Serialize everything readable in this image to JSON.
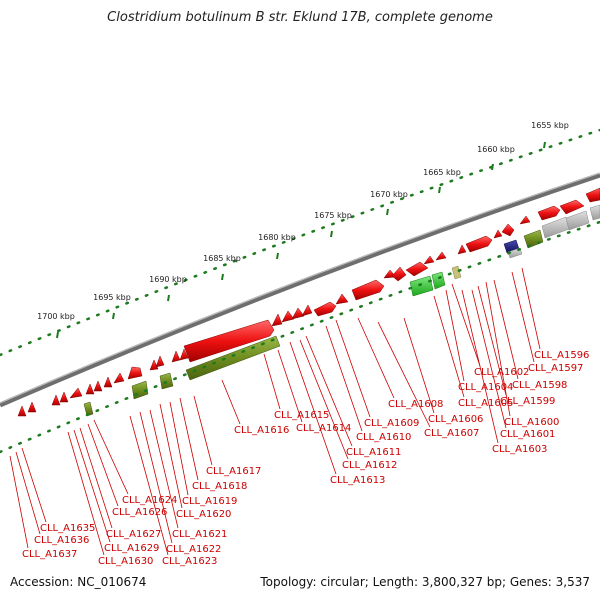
{
  "title": "Clostridium botulinum B str. Eklund 17B, complete genome",
  "footer": {
    "accession": "Accession: NC_010674",
    "summary": "Topology: circular; Length: 3,800,327 bp; Genes: 3,537"
  },
  "ruler": [
    {
      "label": "1655 kbp"
    },
    {
      "label": "1660 kbp"
    },
    {
      "label": "1665 kbp"
    },
    {
      "label": "1670 kbp"
    },
    {
      "label": "1675 kbp"
    },
    {
      "label": "1680 kbp"
    },
    {
      "label": "1685 kbp"
    },
    {
      "label": "1690 kbp"
    },
    {
      "label": "1695 kbp"
    },
    {
      "label": "1700 kbp"
    }
  ],
  "gene_labels": [
    "CLL_A1596",
    "CLL_A1597",
    "CLL_A1598",
    "CLL_A1599",
    "CLL_A1600",
    "CLL_A1601",
    "CLL_A1602",
    "CLL_A1603",
    "CLL_A1604",
    "CLL_A1605",
    "CLL_A1606",
    "CLL_A1607",
    "CLL_A1608",
    "CLL_A1609",
    "CLL_A1610",
    "CLL_A1611",
    "CLL_A1612",
    "CLL_A1613",
    "CLL_A1614",
    "CLL_A1615",
    "CLL_A1616",
    "CLL_A1617",
    "CLL_A1618",
    "CLL_A1619",
    "CLL_A1620",
    "CLL_A1621",
    "CLL_A1622",
    "CLL_A1623",
    "CLL_A1624",
    "CLL_A1626",
    "CLL_A1627",
    "CLL_A1629",
    "CLL_A1630",
    "CLL_A1635",
    "CLL_A1636",
    "CLL_A1637"
  ],
  "colors": {
    "forward_cds": "#ee1111",
    "reverse_cds": "#6f8c1e",
    "rna": "#33cc33",
    "pseudo": "#bbbbbb",
    "misc": "#1a1a80",
    "tick": "#1e7a1e",
    "label": "#cc0000",
    "backbone": "#777777"
  }
}
